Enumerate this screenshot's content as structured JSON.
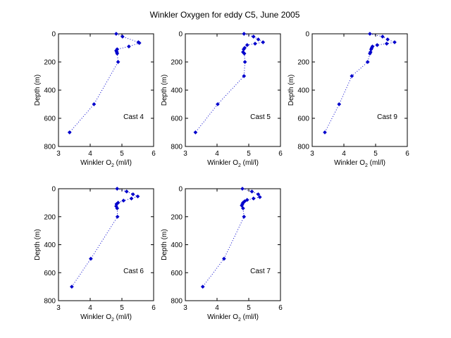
{
  "figure": {
    "title": "Winkler Oxygen for eddy C5, June 2005"
  },
  "style": {
    "marker_color": "#0000cc",
    "line_color": "#0000cc",
    "axis_color": "#000000",
    "background": "#ffffff",
    "line_style": "dotted",
    "marker": "filled-diamond"
  },
  "chart_data": [
    {
      "type": "scatter",
      "annotation": "Cast 4",
      "xlabel": "Winkler O",
      "xlabel_sub": "2",
      "xlabel_unit": " (ml/l)",
      "ylabel": "Depth (m)",
      "xlim": [
        3,
        6
      ],
      "ylim": [
        0,
        800
      ],
      "y_reversed": true,
      "xticks": [
        3,
        4,
        5,
        6
      ],
      "yticks": [
        0,
        200,
        400,
        600,
        800
      ],
      "points": [
        {
          "x": 4.82,
          "y": 0
        },
        {
          "x": 5.02,
          "y": 20
        },
        {
          "x": 5.52,
          "y": 60
        },
        {
          "x": 5.55,
          "y": 65
        },
        {
          "x": 5.22,
          "y": 90
        },
        {
          "x": 4.85,
          "y": 110
        },
        {
          "x": 4.82,
          "y": 120
        },
        {
          "x": 4.84,
          "y": 130
        },
        {
          "x": 4.85,
          "y": 140
        },
        {
          "x": 4.88,
          "y": 200
        },
        {
          "x": 4.12,
          "y": 500
        },
        {
          "x": 3.35,
          "y": 700
        }
      ]
    },
    {
      "type": "scatter",
      "annotation": "Cast 5",
      "xlabel": "Winkler O",
      "xlabel_sub": "2",
      "xlabel_unit": " (ml/l)",
      "ylabel": "Depth (m)",
      "xlim": [
        3,
        6
      ],
      "ylim": [
        0,
        800
      ],
      "y_reversed": true,
      "xticks": [
        3,
        4,
        5,
        6
      ],
      "yticks": [
        0,
        200,
        400,
        600,
        800
      ],
      "points": [
        {
          "x": 4.85,
          "y": 0
        },
        {
          "x": 5.15,
          "y": 20
        },
        {
          "x": 5.3,
          "y": 40
        },
        {
          "x": 5.45,
          "y": 60
        },
        {
          "x": 5.2,
          "y": 70
        },
        {
          "x": 4.95,
          "y": 80
        },
        {
          "x": 4.87,
          "y": 100
        },
        {
          "x": 4.84,
          "y": 110
        },
        {
          "x": 4.82,
          "y": 130
        },
        {
          "x": 4.86,
          "y": 140
        },
        {
          "x": 4.88,
          "y": 200
        },
        {
          "x": 4.85,
          "y": 300
        },
        {
          "x": 4.02,
          "y": 500
        },
        {
          "x": 3.32,
          "y": 700
        }
      ]
    },
    {
      "type": "scatter",
      "annotation": "Cast 9",
      "xlabel": "Winkler O",
      "xlabel_sub": "2",
      "xlabel_unit": " (ml/l)",
      "ylabel": "Depth (m)",
      "xlim": [
        3,
        6
      ],
      "ylim": [
        0,
        800
      ],
      "y_reversed": true,
      "xticks": [
        3,
        4,
        5,
        6
      ],
      "yticks": [
        0,
        200,
        400,
        600,
        800
      ],
      "points": [
        {
          "x": 4.82,
          "y": 0
        },
        {
          "x": 5.22,
          "y": 20
        },
        {
          "x": 5.38,
          "y": 40
        },
        {
          "x": 5.6,
          "y": 60
        },
        {
          "x": 5.35,
          "y": 70
        },
        {
          "x": 5.05,
          "y": 80
        },
        {
          "x": 4.9,
          "y": 90
        },
        {
          "x": 4.88,
          "y": 100
        },
        {
          "x": 4.86,
          "y": 110
        },
        {
          "x": 4.84,
          "y": 130
        },
        {
          "x": 4.82,
          "y": 140
        },
        {
          "x": 4.75,
          "y": 200
        },
        {
          "x": 4.25,
          "y": 300
        },
        {
          "x": 3.85,
          "y": 500
        },
        {
          "x": 3.4,
          "y": 700
        }
      ]
    },
    {
      "type": "scatter",
      "annotation": "Cast 6",
      "xlabel": "Winkler O",
      "xlabel_sub": "2",
      "xlabel_unit": " (ml/l)",
      "ylabel": "Depth (m)",
      "xlim": [
        3,
        6
      ],
      "ylim": [
        0,
        800
      ],
      "y_reversed": true,
      "xticks": [
        3,
        4,
        5,
        6
      ],
      "yticks": [
        0,
        200,
        400,
        600,
        800
      ],
      "points": [
        {
          "x": 4.85,
          "y": 0
        },
        {
          "x": 5.15,
          "y": 20
        },
        {
          "x": 5.35,
          "y": 40
        },
        {
          "x": 5.5,
          "y": 55
        },
        {
          "x": 5.3,
          "y": 70
        },
        {
          "x": 5.05,
          "y": 85
        },
        {
          "x": 4.88,
          "y": 100
        },
        {
          "x": 4.83,
          "y": 110
        },
        {
          "x": 4.82,
          "y": 125
        },
        {
          "x": 4.85,
          "y": 140
        },
        {
          "x": 4.86,
          "y": 200
        },
        {
          "x": 4.02,
          "y": 500
        },
        {
          "x": 3.42,
          "y": 700
        }
      ]
    },
    {
      "type": "scatter",
      "annotation": "Cast 7",
      "xlabel": "Winkler O",
      "xlabel_sub": "2",
      "xlabel_unit": " (ml/l)",
      "ylabel": "Depth (m)",
      "xlim": [
        3,
        6
      ],
      "ylim": [
        0,
        800
      ],
      "y_reversed": true,
      "xticks": [
        3,
        4,
        5,
        6
      ],
      "yticks": [
        0,
        200,
        400,
        600,
        800
      ],
      "points": [
        {
          "x": 4.8,
          "y": 0
        },
        {
          "x": 5.1,
          "y": 20
        },
        {
          "x": 5.3,
          "y": 40
        },
        {
          "x": 5.35,
          "y": 60
        },
        {
          "x": 5.15,
          "y": 70
        },
        {
          "x": 4.95,
          "y": 80
        },
        {
          "x": 4.87,
          "y": 90
        },
        {
          "x": 4.82,
          "y": 100
        },
        {
          "x": 4.8,
          "y": 110
        },
        {
          "x": 4.78,
          "y": 120
        },
        {
          "x": 4.82,
          "y": 140
        },
        {
          "x": 4.85,
          "y": 200
        },
        {
          "x": 4.22,
          "y": 500
        },
        {
          "x": 3.55,
          "y": 700
        }
      ]
    }
  ]
}
